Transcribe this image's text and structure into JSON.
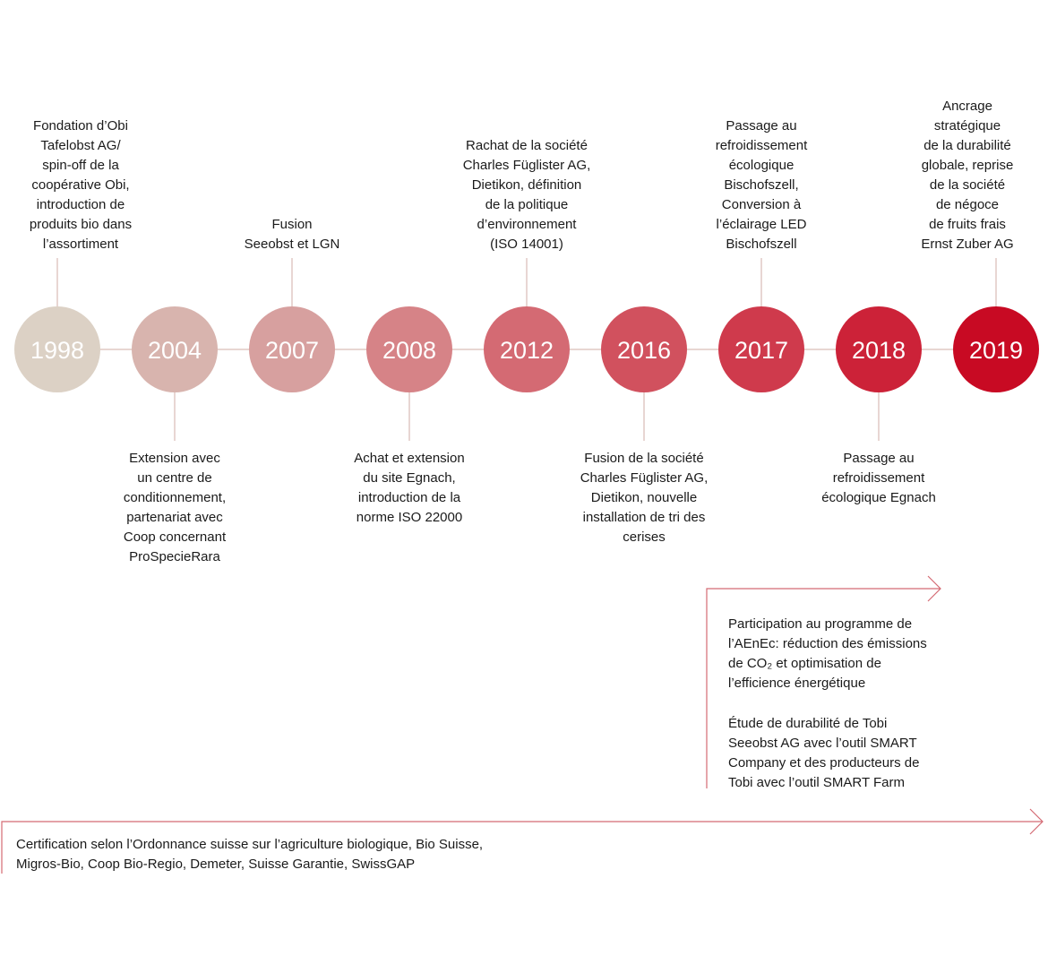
{
  "events": [
    {
      "year": "1998",
      "color": "#dcd1c5",
      "text": "Fondation d’Obi\nTafelobst AG/\nspin-off de la\ncoopérative Obi,\nintroduction de\nproduits bio dans\nl’assortiment",
      "side": "top"
    },
    {
      "year": "2004",
      "color": "#d8b4ae",
      "text": "Extension avec\nun centre de\nconditionnement,\npartenariat avec\nCoop concernant\nProSpecieRara",
      "side": "bottom"
    },
    {
      "year": "2007",
      "color": "#d7a09f",
      "text": "Fusion\nSeeobst et LGN",
      "side": "top"
    },
    {
      "year": "2008",
      "color": "#d68387",
      "text": "Achat et extension\ndu site Egnach,\nintroduction de la\nnorme ISO 22000",
      "side": "bottom"
    },
    {
      "year": "2012",
      "color": "#d46a73",
      "text": "Rachat de la société\nCharles Füglister AG,\nDietikon, définition\nde la politique\nd’environnement\n(ISO 14001)",
      "side": "top"
    },
    {
      "year": "2016",
      "color": "#d1515e",
      "text": "Fusion de la société\nCharles Füglister AG,\nDietikon, nouvelle\ninstallation de tri des\ncerises",
      "side": "bottom"
    },
    {
      "year": "2017",
      "color": "#cf3a4c",
      "text": "Passage au\nrefroidissement\nécologique\nBischofszell,\nConversion à\nl’éclairage LED\nBischofszell",
      "side": "top"
    },
    {
      "year": "2018",
      "color": "#cc2238",
      "text": "Passage au\nrefroidissement\nécologique Egnach",
      "side": "bottom"
    },
    {
      "year": "2019",
      "color": "#c80a23",
      "text": "Ancrage\nstratégique\nde la durabilité\nglobale, reprise\nde la société\nde négoce\nde fruits frais\nErnst Zuber AG",
      "side": "top"
    }
  ],
  "notes": {
    "aenec": "Participation au programme de\nl’AEnEc: réduction des émissions\nde CO₂ et optimisation de\nl’efficience énergétique",
    "smart": "Étude de durabilité de Tobi\nSeeobst AG avec l’outil SMART\nCompany et des producteurs de\nTobi avec l’outil SMART Farm",
    "certification": "Certification selon l’Ordonnance suisse sur l’agriculture biologique, Bio Suisse,\nMigros-Bio, Coop Bio-Regio, Demeter, Suisse Garantie, SwissGAP"
  },
  "colors": {
    "line": "#e0c9c4",
    "arrow": "#c80a23"
  }
}
